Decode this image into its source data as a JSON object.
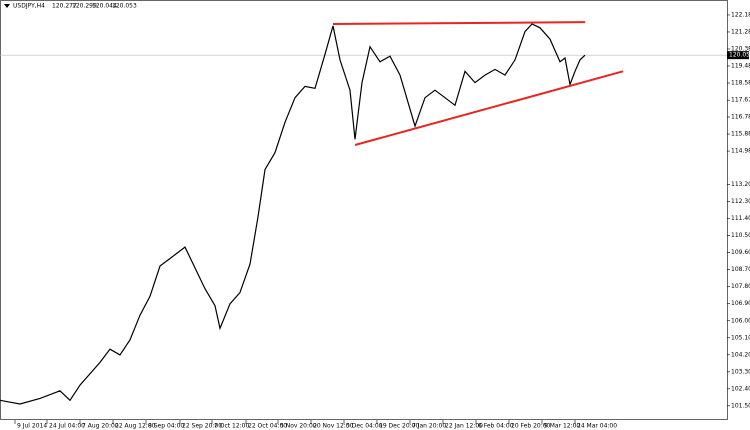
{
  "chart_data": {
    "type": "line",
    "symbol": "USDJPY,H4",
    "ohlc": [
      120.277,
      120.299,
      120.044,
      120.053
    ],
    "x": [
      0,
      20,
      40,
      60,
      70,
      80,
      100,
      110,
      120,
      130,
      140,
      150,
      160,
      170,
      185,
      195,
      205,
      215,
      220,
      230,
      240,
      250,
      258,
      265,
      275,
      285,
      295,
      305,
      315,
      325,
      333,
      340,
      350,
      355,
      362,
      370,
      380,
      390,
      400,
      410,
      415,
      425,
      435,
      445,
      455,
      465,
      475,
      485,
      495,
      505,
      515,
      525,
      532,
      540,
      550,
      560,
      565,
      570,
      575,
      580,
      585
    ],
    "values": [
      101.8,
      101.6,
      101.9,
      102.3,
      101.8,
      102.6,
      103.8,
      104.5,
      104.2,
      105.0,
      106.3,
      107.3,
      108.9,
      109.3,
      109.9,
      108.8,
      107.7,
      106.8,
      105.6,
      106.9,
      107.5,
      109.0,
      111.5,
      114.0,
      114.9,
      116.5,
      117.8,
      118.4,
      118.3,
      120.1,
      121.6,
      119.8,
      118.2,
      115.6,
      118.6,
      120.5,
      119.7,
      120.0,
      119.0,
      117.2,
      116.3,
      117.8,
      118.2,
      117.8,
      117.4,
      119.2,
      118.6,
      119.0,
      119.3,
      119.0,
      119.8,
      121.3,
      121.7,
      121.5,
      120.9,
      119.7,
      119.9,
      118.5,
      119.2,
      119.8,
      120.053
    ],
    "color": "#000000",
    "xlim": [
      0,
      727
    ],
    "ylim": [
      100.65,
      122.97
    ],
    "xticks": [
      {
        "value": 15,
        "label": "9 Jul 2014"
      },
      {
        "value": 47,
        "label": "24 Jul 04:00"
      },
      {
        "value": 80,
        "label": "7 Aug 20:00"
      },
      {
        "value": 113,
        "label": "22 Aug 12:00"
      },
      {
        "value": 146,
        "label": "8 Sep 04:00"
      },
      {
        "value": 180,
        "label": "22 Sep 20:00"
      },
      {
        "value": 212,
        "label": "7 Oct 12:00"
      },
      {
        "value": 246,
        "label": "22 Oct 04:00"
      },
      {
        "value": 278,
        "label": "5 Nov 20:00"
      },
      {
        "value": 311,
        "label": "20 Nov 12:00"
      },
      {
        "value": 344,
        "label": "5 Dec 04:00"
      },
      {
        "value": 377,
        "label": "19 Dec 20:00"
      },
      {
        "value": 410,
        "label": "7 Jan 20:00"
      },
      {
        "value": 443,
        "label": "22 Jan 12:00"
      },
      {
        "value": 476,
        "label": "6 Feb 04:00"
      },
      {
        "value": 509,
        "label": "20 Feb 20:00"
      },
      {
        "value": 542,
        "label": "9 Mar 12:00"
      },
      {
        "value": 575,
        "label": "24 Mar 04:00"
      }
    ],
    "yticks": [
      {
        "value": 122.18,
        "label": "122.180"
      },
      {
        "value": 121.28,
        "label": "121.280"
      },
      {
        "value": 120.38,
        "label": "120.380"
      },
      {
        "value": 119.48,
        "label": "119.480"
      },
      {
        "value": 118.58,
        "label": "118.580"
      },
      {
        "value": 117.67,
        "label": "117.670"
      },
      {
        "value": 116.78,
        "label": "116.780"
      },
      {
        "value": 115.88,
        "label": "115.880"
      },
      {
        "value": 114.98,
        "label": "114.980"
      },
      113.205,
      112.305,
      111.405,
      110.505,
      109.605,
      108.705,
      107.805,
      106.905,
      106.005,
      105.105,
      104.205,
      103.305,
      102.405,
      101.505
    ],
    "trendlines": [
      {
        "color": "#e8251f",
        "x": [
          333,
          585
        ],
        "y": [
          121.7,
          121.8
        ]
      },
      {
        "color": "#e8251f",
        "x": [
          355,
          623
        ],
        "y": [
          115.3,
          119.2
        ]
      }
    ]
  }
}
